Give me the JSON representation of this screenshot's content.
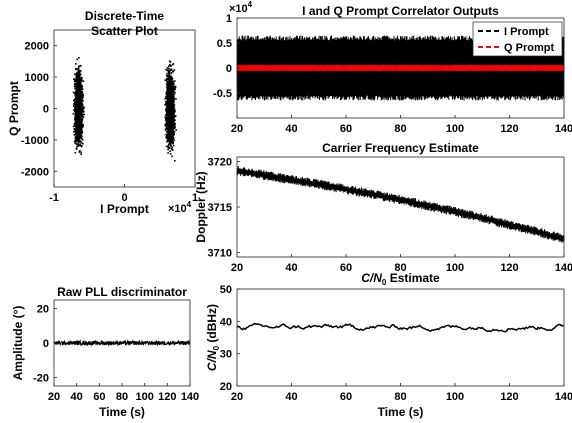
{
  "chart_data": [
    {
      "id": "scatter",
      "type": "scatter",
      "title": [
        "Discrete-Time",
        "Scatter Plot"
      ],
      "xlabel": "I Prompt",
      "ylabel": "Q Prompt",
      "x_exponent": "×10^4",
      "xlim": [
        -10000,
        10000
      ],
      "ylim": [
        -2500,
        2500
      ],
      "xticks": [
        -1,
        0,
        1
      ],
      "yticks": [
        -2000,
        -1000,
        0,
        1000,
        2000
      ],
      "clusters": [
        {
          "x_center": -6500,
          "x_spread": 500,
          "y_spread": 550
        },
        {
          "x_center": 6500,
          "x_spread": 500,
          "y_spread": 550
        }
      ],
      "color": "#000000"
    },
    {
      "id": "iq",
      "type": "line",
      "title": "I and Q Prompt Correlator Outputs",
      "y_exponent": "×10^4",
      "xlim": [
        20,
        140
      ],
      "ylim": [
        -10000,
        10000
      ],
      "xticks": [
        20,
        40,
        60,
        80,
        100,
        120,
        140
      ],
      "yticks": [
        -0.5,
        0,
        0.5,
        1
      ],
      "legend_position": "top-right",
      "series": [
        {
          "name": "I Prompt",
          "color": "#000000",
          "amplitude": 6500
        },
        {
          "name": "Q Prompt",
          "color": "#ff0000",
          "amplitude": 600
        }
      ]
    },
    {
      "id": "carrier",
      "type": "line",
      "title": "Carrier Frequency Estimate",
      "ylabel": "Doppler (Hz)",
      "xlim": [
        20,
        140
      ],
      "ylim": [
        3709.5,
        3720.5
      ],
      "xticks": [
        20,
        40,
        60,
        80,
        100,
        120,
        140
      ],
      "yticks": [
        3710,
        3715,
        3720
      ],
      "series": [
        {
          "name": "",
          "color": "#000000",
          "x": [
            20,
            50,
            80,
            110,
            140
          ],
          "y": [
            3719.0,
            3717.5,
            3715.8,
            3713.8,
            3711.5
          ],
          "noise": 0.35
        }
      ]
    },
    {
      "id": "pll",
      "type": "line",
      "title": "Raw PLL discriminator",
      "ylabel": "Amplitude (°)",
      "xlabel": "Time (s)",
      "xlim": [
        20,
        140
      ],
      "ylim": [
        -25,
        25
      ],
      "xticks": [
        20,
        40,
        60,
        80,
        100,
        120,
        140
      ],
      "yticks": [
        -20,
        0,
        20
      ],
      "series": [
        {
          "name": "",
          "color": "#000000",
          "mean": 0,
          "amplitude": 1.2
        }
      ]
    },
    {
      "id": "cn0",
      "type": "line",
      "title": "C/N0 Estimate",
      "ylabel": "C/N0 (dBHz)",
      "xlabel": "Time (s)",
      "xlim": [
        20,
        140
      ],
      "ylim": [
        20,
        50
      ],
      "xticks": [
        20,
        40,
        60,
        80,
        100,
        120,
        140
      ],
      "yticks": [
        20,
        30,
        40,
        50
      ],
      "series": [
        {
          "name": "",
          "color": "#000000",
          "mean": 38.2,
          "amplitude": 1.5
        }
      ]
    }
  ]
}
